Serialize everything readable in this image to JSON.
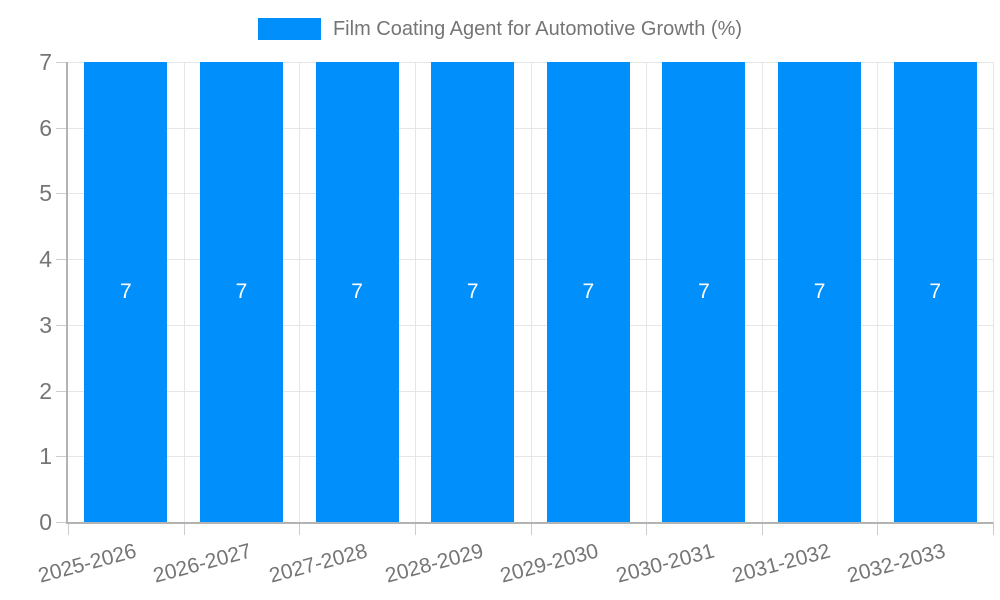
{
  "legend": {
    "label": "Film Coating Agent for Automotive Growth (%)"
  },
  "chart_data": {
    "type": "bar",
    "title": "Film Coating Agent for Automotive Growth (%)",
    "categories": [
      "2025-2026",
      "2026-2027",
      "2027-2028",
      "2028-2029",
      "2029-2030",
      "2030-2031",
      "2031-2032",
      "2032-2033"
    ],
    "series": [
      {
        "name": "Film Coating Agent for Automotive Growth (%)",
        "values": [
          7,
          7,
          7,
          7,
          7,
          7,
          7,
          7
        ]
      }
    ],
    "values": [
      7,
      7,
      7,
      7,
      7,
      7,
      7,
      7
    ],
    "bar_value_labels": [
      "7",
      "7",
      "7",
      "7",
      "7",
      "7",
      "7",
      "7"
    ],
    "xlabel": "",
    "ylabel": "",
    "ylim": [
      0,
      7
    ],
    "yticks": [
      0,
      1,
      2,
      3,
      4,
      5,
      6,
      7
    ],
    "grid": true,
    "legend_position": "top-center",
    "colors": {
      "bar": "#008ffb",
      "gridline": "#e6e6e6",
      "axis": "#b3b3b3",
      "tick": "#cccccc",
      "text": "#757575",
      "bar_label": "#ffffff"
    }
  }
}
